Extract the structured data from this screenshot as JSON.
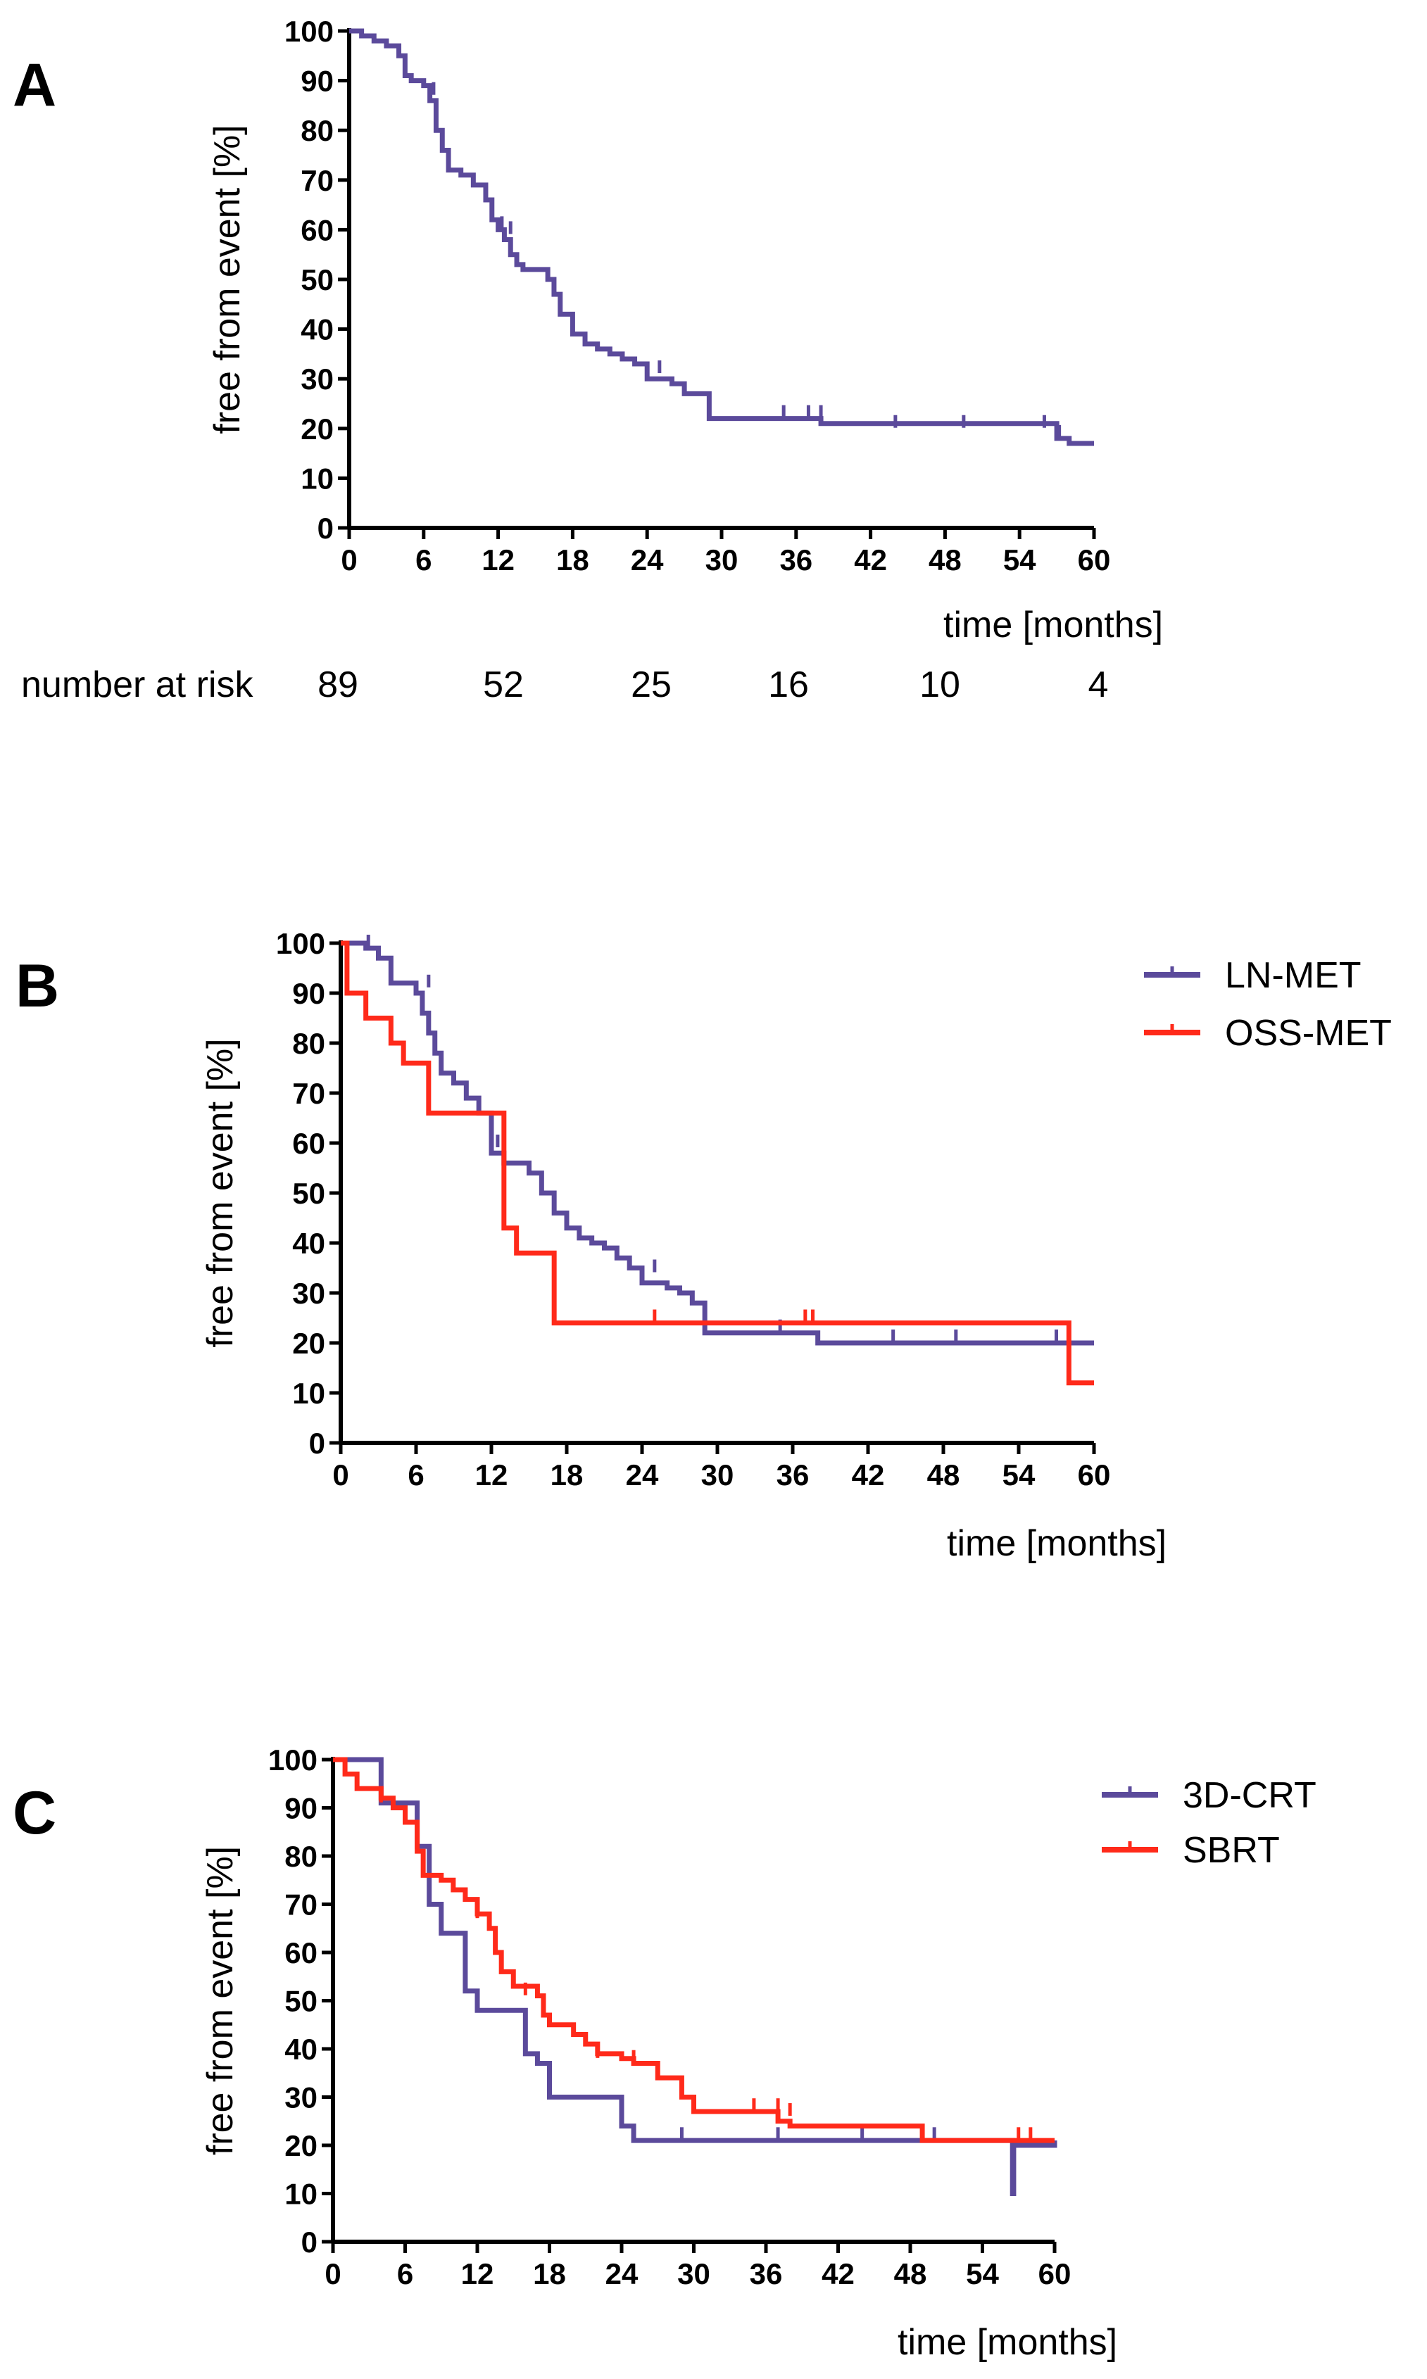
{
  "chart_data": [
    {
      "type": "line",
      "panel": "A",
      "xlabel": "time [months]",
      "ylabel": "free from event [%]",
      "xlim": [
        0,
        60
      ],
      "ylim": [
        0,
        100
      ],
      "xticks": [
        0,
        6,
        12,
        18,
        24,
        30,
        36,
        42,
        48,
        54,
        60
      ],
      "yticks": [
        0,
        10,
        20,
        30,
        40,
        50,
        60,
        70,
        80,
        90,
        100
      ],
      "risk_table": {
        "label": "number at risk",
        "values": [
          "89",
          "52",
          "25",
          "16",
          "10",
          "4"
        ],
        "times": [
          0,
          12,
          24,
          36,
          48,
          60
        ]
      },
      "series": [
        {
          "name": "",
          "color": "#5b4a9b",
          "steps": [
            [
              0,
              100
            ],
            [
              1,
              99
            ],
            [
              2,
              98
            ],
            [
              3,
              97
            ],
            [
              4,
              95
            ],
            [
              4.5,
              91
            ],
            [
              5,
              90
            ],
            [
              6,
              89
            ],
            [
              6.5,
              86
            ],
            [
              7,
              80
            ],
            [
              7.5,
              76
            ],
            [
              8,
              72
            ],
            [
              9,
              71
            ],
            [
              10,
              69
            ],
            [
              11,
              66
            ],
            [
              11.5,
              62
            ],
            [
              12,
              60
            ],
            [
              12.5,
              58
            ],
            [
              13,
              55
            ],
            [
              13.5,
              53
            ],
            [
              14,
              52
            ],
            [
              16,
              50
            ],
            [
              16.5,
              47
            ],
            [
              17,
              43
            ],
            [
              18,
              39
            ],
            [
              19,
              37
            ],
            [
              20,
              36
            ],
            [
              21,
              35
            ],
            [
              22,
              34
            ],
            [
              23,
              33
            ],
            [
              24,
              30
            ],
            [
              26,
              29
            ],
            [
              27,
              27
            ],
            [
              29,
              22
            ],
            [
              38,
              21
            ],
            [
              57,
              18
            ],
            [
              58,
              17
            ],
            [
              60,
              17
            ]
          ],
          "censored": [
            [
              6.8,
              88
            ],
            [
              12.3,
              61
            ],
            [
              13,
              60
            ],
            [
              25,
              32
            ],
            [
              35,
              23
            ],
            [
              37,
              23
            ],
            [
              38,
              23
            ],
            [
              44,
              21
            ],
            [
              49.5,
              21
            ],
            [
              56,
              21
            ],
            [
              57.2,
              19
            ]
          ]
        }
      ]
    },
    {
      "type": "line",
      "panel": "B",
      "xlabel": "time [months]",
      "ylabel": "free from event [%]",
      "xlim": [
        0,
        60
      ],
      "ylim": [
        0,
        100
      ],
      "xticks": [
        0,
        6,
        12,
        18,
        24,
        30,
        36,
        42,
        48,
        54,
        60
      ],
      "yticks": [
        0,
        10,
        20,
        30,
        40,
        50,
        60,
        70,
        80,
        90,
        100
      ],
      "legend_position": "top-right",
      "series": [
        {
          "name": "LN-MET",
          "color": "#5b4a9b",
          "steps": [
            [
              0,
              100
            ],
            [
              2,
              99
            ],
            [
              3,
              97
            ],
            [
              4,
              92
            ],
            [
              6,
              90
            ],
            [
              6.5,
              86
            ],
            [
              7,
              82
            ],
            [
              7.5,
              78
            ],
            [
              8,
              74
            ],
            [
              9,
              72
            ],
            [
              10,
              69
            ],
            [
              11,
              66
            ],
            [
              12,
              58
            ],
            [
              13,
              56
            ],
            [
              15,
              54
            ],
            [
              16,
              50
            ],
            [
              17,
              46
            ],
            [
              18,
              43
            ],
            [
              19,
              41
            ],
            [
              20,
              40
            ],
            [
              21,
              39
            ],
            [
              22,
              37
            ],
            [
              23,
              35
            ],
            [
              24,
              32
            ],
            [
              26,
              31
            ],
            [
              27,
              30
            ],
            [
              28,
              28
            ],
            [
              29,
              22
            ],
            [
              38,
              20
            ],
            [
              60,
              20
            ]
          ],
          "censored": [
            [
              2.2,
              100
            ],
            [
              7,
              92
            ],
            [
              12.5,
              60
            ],
            [
              25,
              35
            ],
            [
              35,
              23
            ],
            [
              44,
              21
            ],
            [
              49,
              21
            ],
            [
              57,
              21
            ]
          ]
        },
        {
          "name": "OSS-MET",
          "color": "#ff2a1a",
          "steps": [
            [
              0,
              100
            ],
            [
              0.5,
              90
            ],
            [
              2,
              85
            ],
            [
              4,
              80
            ],
            [
              5,
              76
            ],
            [
              7,
              66
            ],
            [
              13,
              43
            ],
            [
              14,
              38
            ],
            [
              17,
              24
            ],
            [
              38,
              24
            ],
            [
              58,
              12
            ],
            [
              60,
              12
            ]
          ],
          "censored": [
            [
              25,
              25
            ],
            [
              37,
              25
            ],
            [
              37.6,
              25
            ]
          ]
        }
      ]
    },
    {
      "type": "line",
      "panel": "C",
      "xlabel": "time [months]",
      "ylabel": "free from event [%]",
      "xlim": [
        0,
        60
      ],
      "ylim": [
        0,
        100
      ],
      "xticks": [
        0,
        6,
        12,
        18,
        24,
        30,
        36,
        42,
        48,
        54,
        60
      ],
      "yticks": [
        0,
        10,
        20,
        30,
        40,
        50,
        60,
        70,
        80,
        90,
        100
      ],
      "legend_position": "top-right",
      "series": [
        {
          "name": "3D-CRT",
          "color": "#5b4a9b",
          "steps": [
            [
              0,
              100
            ],
            [
              4,
              91
            ],
            [
              7,
              82
            ],
            [
              8,
              70
            ],
            [
              9,
              64
            ],
            [
              11,
              52
            ],
            [
              12,
              48
            ],
            [
              16,
              39
            ],
            [
              17,
              37
            ],
            [
              18,
              30
            ],
            [
              24,
              24
            ],
            [
              25,
              21
            ],
            [
              56.5,
              10
            ],
            [
              56.6,
              20
            ],
            [
              60,
              21
            ]
          ],
          "censored": [
            [
              29,
              22
            ],
            [
              37,
              22
            ],
            [
              44,
              22
            ],
            [
              50,
              22
            ]
          ]
        },
        {
          "name": "SBRT",
          "color": "#ff2a1a",
          "steps": [
            [
              0,
              100
            ],
            [
              1,
              97
            ],
            [
              2,
              94
            ],
            [
              4,
              92
            ],
            [
              5,
              90
            ],
            [
              6,
              87
            ],
            [
              7,
              81
            ],
            [
              7.5,
              76
            ],
            [
              9,
              75
            ],
            [
              10,
              73
            ],
            [
              11,
              71
            ],
            [
              12,
              68
            ],
            [
              13,
              65
            ],
            [
              13.5,
              60
            ],
            [
              14,
              56
            ],
            [
              15,
              53
            ],
            [
              17,
              51
            ],
            [
              17.5,
              47
            ],
            [
              18,
              45
            ],
            [
              20,
              43
            ],
            [
              21,
              41
            ],
            [
              22,
              39
            ],
            [
              24,
              38
            ],
            [
              25,
              37
            ],
            [
              27,
              34
            ],
            [
              29,
              30
            ],
            [
              30,
              27
            ],
            [
              37,
              25
            ],
            [
              38,
              24
            ],
            [
              49,
              21
            ],
            [
              60,
              21
            ]
          ],
          "censored": [
            [
              4,
              92
            ],
            [
              12,
              68
            ],
            [
              16,
              52
            ],
            [
              22,
              39
            ],
            [
              25,
              38
            ],
            [
              35,
              28
            ],
            [
              37,
              28
            ],
            [
              38,
              27
            ],
            [
              57,
              22
            ],
            [
              58,
              22
            ]
          ]
        }
      ]
    }
  ]
}
